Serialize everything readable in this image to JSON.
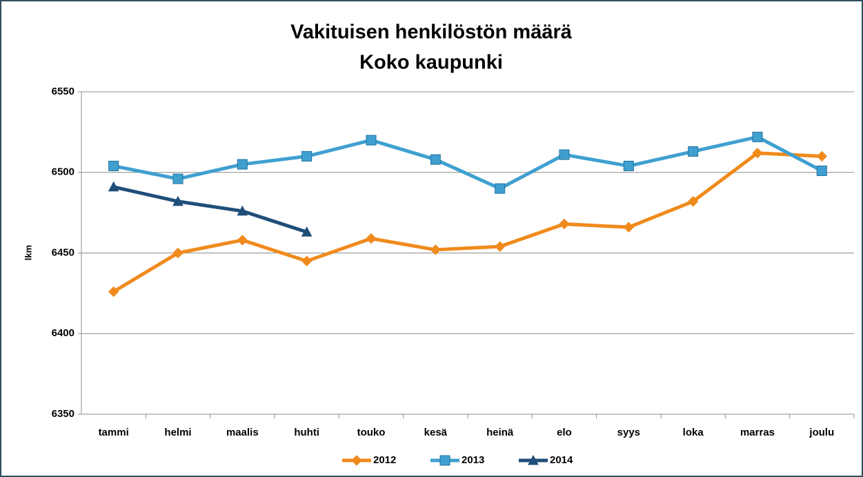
{
  "chart_data": {
    "type": "line",
    "title": "Vakituisen henkilöstön määrä",
    "subtitle": "Koko kaupunki",
    "y_label": "lkm",
    "categories": [
      "tammi",
      "helmi",
      "maalis",
      "huhti",
      "touko",
      "kesä",
      "heinä",
      "elo",
      "syys",
      "loka",
      "marras",
      "joulu"
    ],
    "series": [
      {
        "name": "2012",
        "color": "#f08a1c",
        "marker": "diamond",
        "values": [
          6426,
          6450,
          6458,
          6445,
          6459,
          6452,
          6454,
          6468,
          6466,
          6482,
          6512,
          6510
        ]
      },
      {
        "name": "2013",
        "color": "#3fa0d0",
        "marker": "square",
        "values": [
          6504,
          6496,
          6505,
          6510,
          6520,
          6508,
          6490,
          6511,
          6504,
          6513,
          6522,
          6501
        ]
      },
      {
        "name": "2014",
        "color": "#1f4e79",
        "marker": "triangle",
        "values": [
          6491,
          6482,
          6476,
          6463,
          null,
          null,
          null,
          null,
          null,
          null,
          null,
          null
        ]
      }
    ],
    "ylim": [
      6350,
      6550
    ],
    "yticks": [
      6350,
      6400,
      6450,
      6500,
      6550
    ],
    "grid": true,
    "legend": "bottom"
  }
}
